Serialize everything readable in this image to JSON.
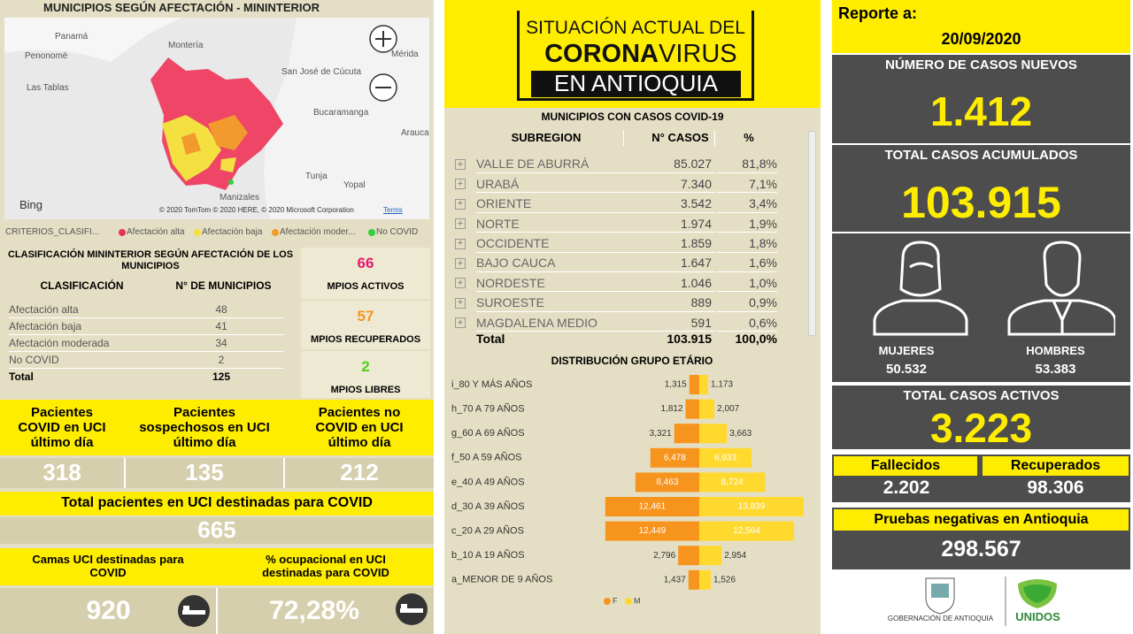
{
  "map": {
    "title": "MUNICIPIOS SEGÚN AFECTACIÓN - MININTERIOR",
    "places": [
      "Panamá",
      "Penonomé",
      "Las Tablas",
      "Montería",
      "Mérida",
      "San José de Cúcuta",
      "Bucaramanga",
      "Arauca",
      "Tunja",
      "Yopal",
      "Manizales"
    ],
    "bing": "Bing",
    "attribution": "© 2020 TomTom © 2020 HERE, © 2020 Microsoft Corporation",
    "terms": "Terms"
  },
  "legend": {
    "title": "CRITERIOS_CLASIFI...",
    "items": [
      "Afectación alta",
      "Afectación baja",
      "Afectación moder...",
      "No COVID"
    ]
  },
  "classification": {
    "title": "CLASIFICACIÓN MININTERIOR SEGÚN AFECTACIÓN DE LOS MUNICIPIOS",
    "headers": [
      "CLASIFICACIÓN",
      "N° DE MUNICIPIOS"
    ],
    "rows": [
      [
        "Afectación alta",
        "48"
      ],
      [
        "Afectación baja",
        "41"
      ],
      [
        "Afectación moderada",
        "34"
      ],
      [
        "No COVID",
        "2"
      ]
    ],
    "total": [
      "Total",
      "125"
    ]
  },
  "municipios": [
    {
      "value": "66",
      "label": "MPIOS ACTIVOS"
    },
    {
      "value": "57",
      "label": "MPIOS RECUPERADOS"
    },
    {
      "value": "2",
      "label": "MPIOS LIBRES"
    }
  ],
  "uci": {
    "headers": [
      "Pacientes COVID en UCI último día",
      "Pacientes sospechosos en UCI último día",
      "Pacientes no COVID en UCI último día"
    ],
    "values": [
      "318",
      "135",
      "212"
    ]
  },
  "uci_total": {
    "label": "Total pacientes en UCI destinadas para COVID",
    "value": "665"
  },
  "camas": {
    "label": "Camas UCI destinadas para COVID",
    "value": "920"
  },
  "ocupacion": {
    "label": "% ocupacional en UCI destinadas para COVID",
    "value": "72,28%"
  },
  "banner": {
    "line1": "SITUACIÓN ACTUAL DEL",
    "corona": "CORONA",
    "virus": "VIRUS",
    "line3": "EN ANTIOQUIA"
  },
  "subregions": {
    "title": "MUNICIPIOS CON CASOS COVID-19",
    "headers": [
      "SUBREGION",
      "N° CASOS",
      "%"
    ],
    "rows": [
      [
        "VALLE DE ABURRÁ",
        "85.027",
        "81,8%"
      ],
      [
        "URABÁ",
        "7.340",
        "7,1%"
      ],
      [
        "ORIENTE",
        "3.542",
        "3,4%"
      ],
      [
        "NORTE",
        "1.974",
        "1,9%"
      ],
      [
        "OCCIDENTE",
        "1.859",
        "1,8%"
      ],
      [
        "BAJO CAUCA",
        "1.647",
        "1,6%"
      ],
      [
        "NORDESTE",
        "1.046",
        "1,0%"
      ],
      [
        "SUROESTE",
        "889",
        "0,9%"
      ],
      [
        "MAGDALENA MEDIO",
        "591",
        "0,6%"
      ]
    ],
    "total": [
      "Total",
      "103.915",
      "100,0%"
    ]
  },
  "chart_data": {
    "type": "bar",
    "title": "DISTRIBUCIÓN GRUPO ETÁRIO",
    "categories": [
      "i_80 Y MÁS AÑOS",
      "h_70 A 79 AÑOS",
      "g_60 A 69 AÑOS",
      "f_50 A 59 AÑOS",
      "e_40 A 49 AÑOS",
      "d_30 A 39 AÑOS",
      "c_20 A 29 AÑOS",
      "b_10 A 19 AÑOS",
      "a_MENOR DE 9 AÑOS"
    ],
    "series": [
      {
        "name": "F",
        "color": "#f7941d",
        "values": [
          1315,
          1812,
          3321,
          6478,
          8463,
          12461,
          12449,
          2796,
          1437
        ],
        "value_labels": [
          "1,315",
          "1,812",
          "3,321",
          "6,478",
          "8,463",
          "12,461",
          "12,449",
          "2,796",
          "1,437"
        ]
      },
      {
        "name": "M",
        "color": "#ffd92e",
        "values": [
          1173,
          2007,
          3663,
          6933,
          8724,
          13839,
          12564,
          2954,
          1526
        ],
        "value_labels": [
          "1,173",
          "2,007",
          "3,663",
          "6,933",
          "8,724",
          "13,839",
          "12,564",
          "2,954",
          "1,526"
        ]
      }
    ]
  },
  "report": {
    "label": "Reporte a:",
    "date": "20/09/2020"
  },
  "new_cases": {
    "label": "NÚMERO DE CASOS NUEVOS",
    "value": "1.412"
  },
  "total_cases": {
    "label": "TOTAL CASOS ACUMULADOS",
    "value": "103.915"
  },
  "gender": {
    "women": {
      "label": "MUJERES",
      "value": "50.532"
    },
    "men": {
      "label": "HOMBRES",
      "value": "53.383"
    }
  },
  "active": {
    "label": "TOTAL CASOS ACTIVOS",
    "value": "3.223"
  },
  "deaths": {
    "label": "Fallecidos",
    "value": "2.202"
  },
  "recovered": {
    "label": "Recuperados",
    "value": "98.306"
  },
  "tests": {
    "label": "Pruebas negativas en Antioquia",
    "value": "298.567"
  },
  "logos": {
    "gov": "GOBERNACIÓN DE ANTIOQUIA",
    "unidos": "UNIDOS"
  }
}
